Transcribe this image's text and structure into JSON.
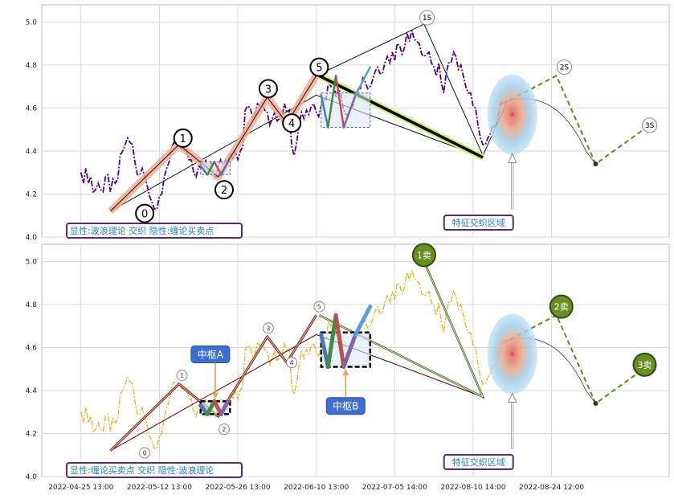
{
  "chart_data": [
    {
      "type": "line",
      "panel": "top",
      "ylim": [
        4.0,
        5.08
      ],
      "yticks": [
        "4.0",
        "4.2",
        "4.4",
        "4.6",
        "4.8",
        "5.0"
      ],
      "legend_text": "显性:波浪理论 交织 隐性:缠论买卖点",
      "zone_label": "特征交织区域",
      "wave_labels": [
        {
          "text": "0",
          "x": 6.5,
          "y": 4.11
        },
        {
          "text": "1",
          "x": 10.4,
          "y": 4.46
        },
        {
          "text": "2",
          "x": 14.6,
          "y": 4.22
        },
        {
          "text": "3",
          "x": 19.1,
          "y": 4.69
        },
        {
          "text": "4",
          "x": 21.5,
          "y": 4.53
        },
        {
          "text": "5",
          "x": 24.3,
          "y": 4.79
        },
        {
          "text": "1S",
          "x": 35.3,
          "y": 5.02
        },
        {
          "text": "2S",
          "x": 49.3,
          "y": 4.79
        },
        {
          "text": "3S",
          "x": 58.0,
          "y": 4.52
        }
      ]
    },
    {
      "type": "line",
      "panel": "bottom",
      "ylim": [
        4.0,
        5.08
      ],
      "yticks": [
        "4.0",
        "4.2",
        "4.4",
        "4.6",
        "4.8",
        "5.0"
      ],
      "legend_text": "显性:缠论买卖点 交织 隐性:波浪理论",
      "zone_label": "特征交织区域",
      "pivot_labels": [
        "中枢A",
        "中枢B"
      ],
      "sell_labels": [
        {
          "text": "1卖",
          "x": 35.0,
          "y": 5.03
        },
        {
          "text": "2卖",
          "x": 49.0,
          "y": 4.79
        },
        {
          "text": "3卖",
          "x": 57.5,
          "y": 4.52
        }
      ],
      "wave_labels": [
        {
          "text": "0",
          "x": 6.5,
          "y": 4.11
        },
        {
          "text": "1",
          "x": 10.3,
          "y": 4.47
        },
        {
          "text": "2",
          "x": 14.6,
          "y": 4.22
        },
        {
          "text": "3",
          "x": 19.1,
          "y": 4.69
        },
        {
          "text": "4",
          "x": 21.5,
          "y": 4.53
        },
        {
          "text": "5",
          "x": 24.3,
          "y": 4.79
        }
      ]
    }
  ],
  "shared": {
    "x_tick_labels": [
      "2022-04-25 13:00",
      "2022-05-12 13:00",
      "2022-05-26 13:00",
      "2022-06-10 13:00",
      "2022-07-05 14:00",
      "2022-08-10 14:00",
      "2022-08-24 12:00"
    ],
    "x_tick_positions": [
      0,
      8,
      16,
      24,
      32,
      40,
      48
    ],
    "xlim": [
      -4,
      60
    ],
    "wave_path": [
      [
        3,
        4.12
      ],
      [
        10,
        4.43
      ],
      [
        14,
        4.28
      ],
      [
        19,
        4.65
      ],
      [
        21,
        4.53
      ],
      [
        24,
        4.75
      ],
      [
        35,
        4.99
      ],
      [
        41,
        4.38
      ],
      [
        43.5,
        4.63
      ]
    ],
    "trend_line": [
      [
        3,
        4.12
      ],
      [
        24,
        4.66
      ],
      [
        41,
        4.37
      ]
    ],
    "projection": [
      [
        43,
        4.62
      ],
      [
        48.5,
        4.75
      ],
      [
        52.5,
        4.34
      ],
      [
        58,
        4.52
      ]
    ],
    "zone_center": [
      44,
      4.57
    ],
    "price_series": [
      [
        0.0,
        4.3
      ],
      [
        0.25,
        4.25
      ],
      [
        0.5,
        4.32
      ],
      [
        0.75,
        4.25
      ],
      [
        1.0,
        4.28
      ],
      [
        1.25,
        4.21
      ],
      [
        1.5,
        4.22
      ],
      [
        1.75,
        4.25
      ],
      [
        2.0,
        4.22
      ],
      [
        2.25,
        4.21
      ],
      [
        2.5,
        4.28
      ],
      [
        2.75,
        4.29
      ],
      [
        3.0,
        4.21
      ],
      [
        3.25,
        4.27
      ],
      [
        3.5,
        4.25
      ],
      [
        3.75,
        4.27
      ],
      [
        4.0,
        4.38
      ],
      [
        4.25,
        4.4
      ],
      [
        4.5,
        4.43
      ],
      [
        4.75,
        4.46
      ],
      [
        5.0,
        4.44
      ],
      [
        5.25,
        4.43
      ],
      [
        5.5,
        4.35
      ],
      [
        5.75,
        4.29
      ],
      [
        6.0,
        4.29
      ],
      [
        6.25,
        4.32
      ],
      [
        6.5,
        4.28
      ],
      [
        6.75,
        4.24
      ],
      [
        7.0,
        4.19
      ],
      [
        7.25,
        4.16
      ],
      [
        7.5,
        4.13
      ],
      [
        7.75,
        4.13
      ],
      [
        8.0,
        4.19
      ],
      [
        8.25,
        4.2
      ],
      [
        8.5,
        4.28
      ],
      [
        8.75,
        4.32
      ],
      [
        9.0,
        4.35
      ],
      [
        9.25,
        4.42
      ],
      [
        9.5,
        4.44
      ],
      [
        9.75,
        4.43
      ],
      [
        10.0,
        4.43
      ],
      [
        10.25,
        4.41
      ],
      [
        10.5,
        4.4
      ],
      [
        10.75,
        4.41
      ],
      [
        11.0,
        4.36
      ],
      [
        11.25,
        4.36
      ],
      [
        11.5,
        4.3
      ],
      [
        11.75,
        4.28
      ],
      [
        12.0,
        4.33
      ],
      [
        12.25,
        4.32
      ],
      [
        12.5,
        4.32
      ],
      [
        12.75,
        4.36
      ],
      [
        13.0,
        4.29
      ],
      [
        13.25,
        4.35
      ],
      [
        13.5,
        4.3
      ],
      [
        13.75,
        4.28
      ],
      [
        14.0,
        4.33
      ],
      [
        14.25,
        4.36
      ],
      [
        14.5,
        4.33
      ],
      [
        14.75,
        4.36
      ],
      [
        15.0,
        4.35
      ],
      [
        15.25,
        4.39
      ],
      [
        15.5,
        4.36
      ],
      [
        15.75,
        4.4
      ],
      [
        16.0,
        4.36
      ],
      [
        16.25,
        4.4
      ],
      [
        16.5,
        4.42
      ],
      [
        16.75,
        4.59
      ],
      [
        17.0,
        4.61
      ],
      [
        17.25,
        4.6
      ],
      [
        17.5,
        4.56
      ],
      [
        17.75,
        4.57
      ],
      [
        18.0,
        4.62
      ],
      [
        18.25,
        4.61
      ],
      [
        18.5,
        4.62
      ],
      [
        18.75,
        4.59
      ],
      [
        19.0,
        4.58
      ],
      [
        19.25,
        4.52
      ],
      [
        19.5,
        4.55
      ],
      [
        19.75,
        4.58
      ],
      [
        20.0,
        4.54
      ],
      [
        20.25,
        4.55
      ],
      [
        20.5,
        4.56
      ],
      [
        20.75,
        4.62
      ],
      [
        21.0,
        4.58
      ],
      [
        21.25,
        4.59
      ],
      [
        21.5,
        4.42
      ],
      [
        21.75,
        4.38
      ],
      [
        22.0,
        4.44
      ],
      [
        22.25,
        4.52
      ],
      [
        22.5,
        4.58
      ],
      [
        22.75,
        4.55
      ],
      [
        23.0,
        4.59
      ],
      [
        23.25,
        4.57
      ],
      [
        23.5,
        4.61
      ],
      [
        23.75,
        4.62
      ],
      [
        24.0,
        4.58
      ],
      [
        24.25,
        4.56
      ],
      [
        24.5,
        4.61
      ],
      [
        24.75,
        4.64
      ],
      [
        25.0,
        4.64
      ],
      [
        25.25,
        4.72
      ],
      [
        25.5,
        4.7
      ],
      [
        25.75,
        4.73
      ],
      [
        26.0,
        4.65
      ],
      [
        26.25,
        4.69
      ],
      [
        26.5,
        4.67
      ],
      [
        26.75,
        4.6
      ],
      [
        27.0,
        4.57
      ],
      [
        27.25,
        4.57
      ],
      [
        27.5,
        4.6
      ],
      [
        27.75,
        4.61
      ],
      [
        28.0,
        4.65
      ],
      [
        28.25,
        4.69
      ],
      [
        28.5,
        4.69
      ],
      [
        28.75,
        4.74
      ],
      [
        29.0,
        4.72
      ],
      [
        29.25,
        4.69
      ],
      [
        29.5,
        4.7
      ],
      [
        29.75,
        4.73
      ],
      [
        30.0,
        4.77
      ],
      [
        30.25,
        4.79
      ],
      [
        30.5,
        4.76
      ],
      [
        30.75,
        4.76
      ],
      [
        31.0,
        4.81
      ],
      [
        31.25,
        4.84
      ],
      [
        31.5,
        4.81
      ],
      [
        31.75,
        4.86
      ],
      [
        32.0,
        4.82
      ],
      [
        32.25,
        4.9
      ],
      [
        32.5,
        4.89
      ],
      [
        32.75,
        4.85
      ],
      [
        33.0,
        4.88
      ],
      [
        33.25,
        4.95
      ],
      [
        33.5,
        4.91
      ],
      [
        33.75,
        4.96
      ],
      [
        34.0,
        4.92
      ],
      [
        34.25,
        4.91
      ],
      [
        34.5,
        4.9
      ],
      [
        34.75,
        4.85
      ],
      [
        35.0,
        4.84
      ],
      [
        35.25,
        4.85
      ],
      [
        35.5,
        4.86
      ],
      [
        35.75,
        4.81
      ],
      [
        36.0,
        4.79
      ],
      [
        36.25,
        4.75
      ],
      [
        36.5,
        4.81
      ],
      [
        36.75,
        4.72
      ],
      [
        37.0,
        4.67
      ],
      [
        37.25,
        4.76
      ],
      [
        37.5,
        4.81
      ],
      [
        37.75,
        4.81
      ],
      [
        38.0,
        4.86
      ],
      [
        38.25,
        4.84
      ],
      [
        38.5,
        4.78
      ],
      [
        38.75,
        4.8
      ],
      [
        39.0,
        4.75
      ],
      [
        39.25,
        4.7
      ],
      [
        39.5,
        4.67
      ],
      [
        39.75,
        4.67
      ],
      [
        40.0,
        4.61
      ],
      [
        40.25,
        4.6
      ],
      [
        40.5,
        4.52
      ],
      [
        40.75,
        4.46
      ],
      [
        41.0,
        4.43
      ],
      [
        41.25,
        4.43
      ],
      [
        41.5,
        4.46
      ],
      [
        41.75,
        4.48
      ],
      [
        42.0,
        4.52
      ],
      [
        42.25,
        4.51
      ],
      [
        42.5,
        4.55
      ],
      [
        42.75,
        4.61
      ],
      [
        43.0,
        4.64
      ]
    ]
  }
}
